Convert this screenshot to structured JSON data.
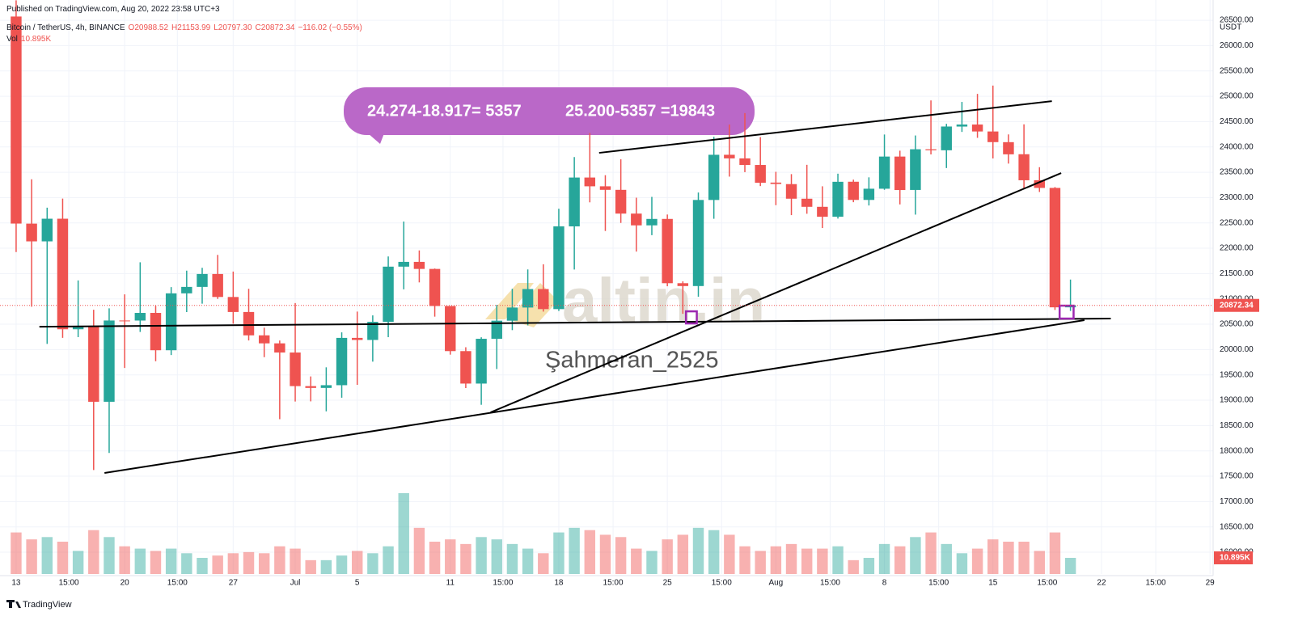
{
  "header": {
    "published": "Published on TradingView.com, Aug 20, 2022 23:58 UTC+3",
    "symbol": "Bitcoin / TetherUS, 4h, BINANCE",
    "ohlc": [
      "O20988.52",
      "H21153.99",
      "L20797.30",
      "C20872.34",
      "−116.02 (−0.55%)"
    ],
    "volume_name": "Vol",
    "volume_value": "10.895K",
    "currency": "USDT",
    "brand": "TradingView"
  },
  "annotations": [
    "24.274-18.917= 5357",
    "25.200-5357 =19843"
  ],
  "watermark": {
    "logo": "altin.in",
    "author": "Şahmeran_2525"
  },
  "chart_data": {
    "type": "candlestick",
    "up_color": "#26a69a",
    "down_color": "#ef5350",
    "grid": true,
    "x": [
      0,
      1,
      2,
      3,
      4,
      5,
      6,
      7,
      8,
      9,
      10,
      11,
      12,
      13,
      14,
      15,
      16,
      17,
      18,
      19,
      20,
      21,
      22,
      23,
      24,
      25,
      26,
      27,
      28,
      29,
      30,
      31,
      32,
      33,
      34,
      35,
      36,
      37,
      38,
      39,
      40,
      41,
      42,
      43,
      44,
      45,
      46,
      47,
      48,
      49,
      50,
      51,
      52,
      53,
      54,
      55,
      56,
      57,
      58,
      59,
      60,
      61,
      62,
      63,
      64,
      65,
      66,
      67,
      68
    ],
    "open": [
      26574,
      22486,
      22136,
      22583,
      20401,
      20468,
      18970,
      20574,
      20573,
      20724,
      19987,
      21110,
      21237,
      21492,
      21038,
      20742,
      20281,
      20123,
      19942,
      19279,
      19243,
      19297,
      20231,
      20190,
      20548,
      21637,
      21731,
      21592,
      20860,
      19970,
      19329,
      20213,
      20570,
      20830,
      21195,
      20799,
      22432,
      23396,
      23223,
      23153,
      22684,
      22452,
      22579,
      21310,
      21254,
      22953,
      23845,
      23774,
      23644,
      23296,
      23266,
      22978,
      22818,
      22622,
      23313,
      22954,
      23175,
      23810,
      23151,
      23954,
      23934,
      24402,
      24442,
      24305,
      24094,
      23856,
      23342,
      23191,
      20834
    ],
    "high": [
      26895,
      23362,
      22800,
      22980,
      21365,
      20787,
      20815,
      21090,
      21723,
      20865,
      21233,
      21558,
      21614,
      21869,
      21540,
      21200,
      20432,
      20179,
      20918,
      19470,
      19650,
      20340,
      20750,
      20675,
      21838,
      22527,
      21957,
      21600,
      20860,
      20046,
      20243,
      20882,
      21200,
      21582,
      21684,
      22780,
      23800,
      24276,
      23442,
      23756,
      22998,
      23014,
      22666,
      21347,
      23100,
      24199,
      24442,
      24668,
      24194,
      23509,
      23463,
      23647,
      23223,
      23472,
      23354,
      23400,
      24245,
      23926,
      24226,
      24918,
      24456,
      24888,
      25047,
      25211,
      24247,
      24446,
      23600,
      23208,
      21382
    ],
    "low": [
      21925,
      20846,
      20111,
      20232,
      20246,
      17622,
      17960,
      19637,
      20348,
      19770,
      19892,
      20740,
      20906,
      21000,
      20510,
      20180,
      19850,
      18626,
      18975,
      18978,
      18781,
      19050,
      19304,
      19762,
      20245,
      21189,
      21326,
      20650,
      19900,
      19240,
      18910,
      19616,
      20384,
      20478,
      20750,
      20762,
      21581,
      22906,
      22341,
      22500,
      21934,
      22258,
      21250,
      20706,
      21043,
      22582,
      23414,
      23502,
      23227,
      22850,
      22654,
      22681,
      22400,
      22586,
      22909,
      22844,
      23154,
      22865,
      22664,
      23852,
      23583,
      24296,
      24179,
      23773,
      23671,
      23180,
      23111,
      20783,
      20762
    ],
    "close": [
      22487,
      22136,
      22583,
      20401,
      20468,
      18970,
      20574,
      20573,
      20724,
      19987,
      21110,
      21237,
      21492,
      21038,
      20742,
      20281,
      20123,
      19942,
      19279,
      19243,
      19297,
      20231,
      20190,
      20548,
      21637,
      21731,
      21592,
      20860,
      19970,
      19329,
      20213,
      20570,
      20830,
      21195,
      20799,
      22432,
      23396,
      23223,
      23153,
      22684,
      22452,
      22579,
      21310,
      21254,
      22953,
      23845,
      23774,
      23644,
      23293,
      23269,
      22978,
      22818,
      22622,
      23312,
      22954,
      23175,
      23810,
      23149,
      23954,
      23934,
      24403,
      24442,
      24305,
      24095,
      23854,
      23342,
      23191,
      20834,
      20872.34
    ],
    "volume": [
      180,
      150,
      160,
      140,
      100,
      190,
      160,
      120,
      110,
      100,
      110,
      90,
      70,
      80,
      90,
      95,
      90,
      120,
      110,
      60,
      60,
      80,
      100,
      90,
      120,
      350,
      200,
      140,
      150,
      130,
      160,
      150,
      130,
      110,
      90,
      180,
      200,
      190,
      170,
      160,
      110,
      100,
      150,
      170,
      200,
      190,
      170,
      120,
      100,
      120,
      130,
      110,
      110,
      120,
      60,
      70,
      130,
      120,
      160,
      180,
      130,
      90,
      110,
      150,
      140,
      140,
      100,
      180,
      70
    ],
    "vlim": [
      0,
      700
    ],
    "xlim": [
      -1.04,
      77.2
    ],
    "xticks": [
      {
        "value": 0,
        "label": "13"
      },
      {
        "value": 3.4,
        "label": "15:00"
      },
      {
        "value": 7,
        "label": "20"
      },
      {
        "value": 10.4,
        "label": "15:00"
      },
      {
        "value": 14,
        "label": "27"
      },
      {
        "value": 18,
        "label": "Jul"
      },
      {
        "value": 22,
        "label": "5"
      },
      {
        "value": 28,
        "label": "11"
      },
      {
        "value": 31.4,
        "label": "15:00"
      },
      {
        "value": 35,
        "label": "18"
      },
      {
        "value": 38.5,
        "label": "15:00"
      },
      {
        "value": 42,
        "label": "25"
      },
      {
        "value": 45.5,
        "label": "15:00"
      },
      {
        "value": 49,
        "label": "Aug"
      },
      {
        "value": 52.5,
        "label": "15:00"
      },
      {
        "value": 56,
        "label": "8"
      },
      {
        "value": 59.5,
        "label": "15:00"
      },
      {
        "value": 63,
        "label": "15"
      },
      {
        "value": 66.5,
        "label": "15:00"
      },
      {
        "value": 70,
        "label": "22"
      },
      {
        "value": 73.5,
        "label": "15:00"
      },
      {
        "value": 77,
        "label": "29"
      }
    ],
    "ylim": [
      15570,
      26900
    ],
    "yticks": [
      {
        "value": 16000,
        "label": "16000.00"
      },
      {
        "value": 16500,
        "label": "16500.00"
      },
      {
        "value": 17000,
        "label": "17000.00"
      },
      {
        "value": 17500,
        "label": "17500.00"
      },
      {
        "value": 18000,
        "label": "18000.00"
      },
      {
        "value": 18500,
        "label": "18500.00"
      },
      {
        "value": 19000,
        "label": "19000.00"
      },
      {
        "value": 19500,
        "label": "19500.00"
      },
      {
        "value": 20000,
        "label": "20000.00"
      },
      {
        "value": 20500,
        "label": "20500.00"
      },
      {
        "value": 21000,
        "label": "21000.00"
      },
      {
        "value": 21500,
        "label": "21500.00"
      },
      {
        "value": 22000,
        "label": "22000.00"
      },
      {
        "value": 22500,
        "label": "22500.00"
      },
      {
        "value": 23000,
        "label": "23000.00"
      },
      {
        "value": 23500,
        "label": "23500.00"
      },
      {
        "value": 24000,
        "label": "24000.00"
      },
      {
        "value": 24500,
        "label": "24500.00"
      },
      {
        "value": 25000,
        "label": "25000.00"
      },
      {
        "value": 25500,
        "label": "25500.00"
      },
      {
        "value": 26000,
        "label": "26000.00"
      },
      {
        "value": 26500,
        "label": "26500.00"
      }
    ],
    "trend_lines": [
      {
        "x": [
          37.6,
          66.8
        ],
        "y": [
          23883,
          24904
        ]
      },
      {
        "x": [
          1.5,
          70.6
        ],
        "y": [
          20452,
          20612
        ]
      },
      {
        "x": [
          5.7,
          68.9
        ],
        "y": [
          17564,
          20580
        ]
      },
      {
        "x": [
          30.6,
          67.4
        ],
        "y": [
          18761,
          23484
        ]
      }
    ],
    "line_color": "#000000",
    "boxes": [
      {
        "x": [
          43.2,
          43.9
        ],
        "y": [
          20516,
          20755
        ]
      },
      {
        "x": [
          67.3,
          68.2
        ],
        "y": [
          20612,
          20867
        ]
      }
    ],
    "box_color": "#9c27b0"
  }
}
